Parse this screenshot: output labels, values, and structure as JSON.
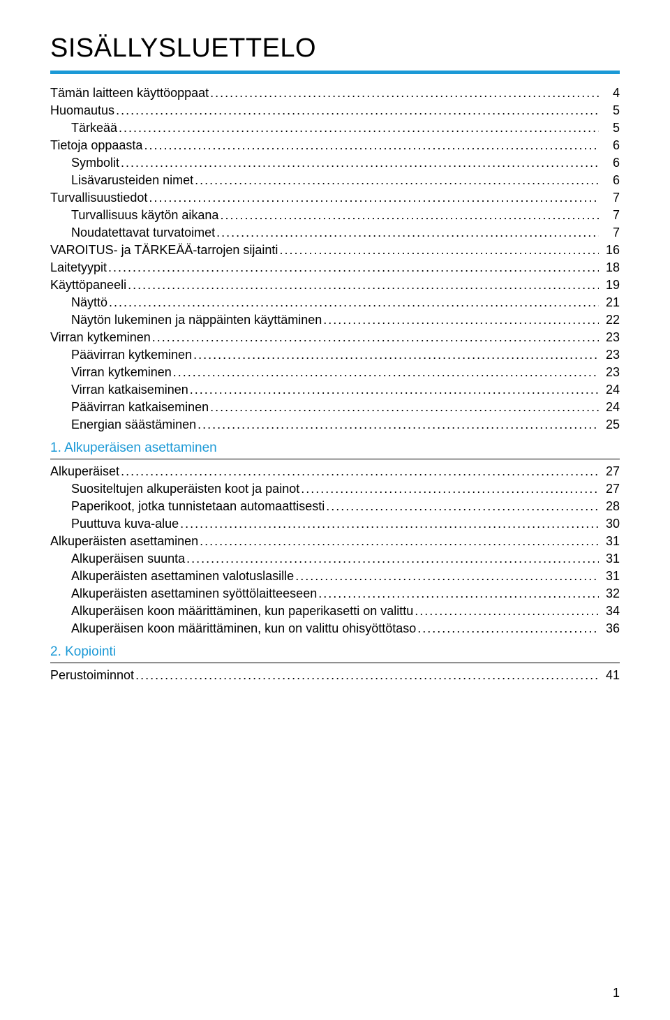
{
  "title": "SISÄLLYSLUETTELO",
  "page_number": "1",
  "colors": {
    "accent": "#1b99d6",
    "text": "#000000",
    "background": "#ffffff"
  },
  "fontsizes": {
    "title": 38,
    "body": 18,
    "heading": 19
  },
  "entries": [
    {
      "label": "Tämän laitteen käyttöoppaat",
      "page": "4",
      "indent": 0
    },
    {
      "label": "Huomautus",
      "page": "5",
      "indent": 0
    },
    {
      "label": "Tärkeää",
      "page": "5",
      "indent": 1
    },
    {
      "label": "Tietoja oppaasta",
      "page": "6",
      "indent": 0
    },
    {
      "label": "Symbolit",
      "page": "6",
      "indent": 1
    },
    {
      "label": "Lisävarusteiden nimet",
      "page": "6",
      "indent": 1
    },
    {
      "label": "Turvallisuustiedot",
      "page": "7",
      "indent": 0
    },
    {
      "label": "Turvallisuus käytön aikana",
      "page": "7",
      "indent": 1
    },
    {
      "label": "Noudatettavat turvatoimet",
      "page": "7",
      "indent": 1
    },
    {
      "label": "VAROITUS- ja TÄRKEÄÄ-tarrojen sijainti",
      "page": "16",
      "indent": 0
    },
    {
      "label": "Laitetyypit",
      "page": "18",
      "indent": 0
    },
    {
      "label": "Käyttöpaneeli",
      "page": "19",
      "indent": 0
    },
    {
      "label": "Näyttö",
      "page": "21",
      "indent": 1
    },
    {
      "label": "Näytön lukeminen ja näppäinten käyttäminen",
      "page": "22",
      "indent": 1
    },
    {
      "label": "Virran kytkeminen",
      "page": "23",
      "indent": 0
    },
    {
      "label": "Päävirran kytkeminen",
      "page": "23",
      "indent": 1
    },
    {
      "label": "Virran kytkeminen",
      "page": "23",
      "indent": 1
    },
    {
      "label": "Virran katkaiseminen",
      "page": "24",
      "indent": 1
    },
    {
      "label": "Päävirran katkaiseminen",
      "page": "24",
      "indent": 1
    },
    {
      "label": "Energian säästäminen",
      "page": "25",
      "indent": 1
    }
  ],
  "section1": {
    "heading": "1. Alkuperäisen asettaminen",
    "entries": [
      {
        "label": "Alkuperäiset",
        "page": "27",
        "indent": 0
      },
      {
        "label": "Suositeltujen alkuperäisten koot ja painot",
        "page": "27",
        "indent": 1
      },
      {
        "label": "Paperikoot, jotka tunnistetaan automaattisesti",
        "page": "28",
        "indent": 1
      },
      {
        "label": "Puuttuva kuva-alue",
        "page": "30",
        "indent": 1
      },
      {
        "label": "Alkuperäisten asettaminen",
        "page": "31",
        "indent": 0
      },
      {
        "label": "Alkuperäisen suunta",
        "page": "31",
        "indent": 1
      },
      {
        "label": "Alkuperäisten asettaminen valotuslasille",
        "page": "31",
        "indent": 1
      },
      {
        "label": "Alkuperäisten asettaminen syöttölaitteeseen ",
        "page": "32",
        "indent": 1
      },
      {
        "label": "Alkuperäisen koon määrittäminen, kun paperikasetti on valittu",
        "page": "34",
        "indent": 1
      },
      {
        "label": "Alkuperäisen koon määrittäminen, kun on valittu ohisyöttötaso",
        "page": "36",
        "indent": 1
      }
    ]
  },
  "section2": {
    "heading": "2. Kopiointi",
    "entries": [
      {
        "label": "Perustoiminnot",
        "page": "41",
        "indent": 0
      }
    ]
  }
}
